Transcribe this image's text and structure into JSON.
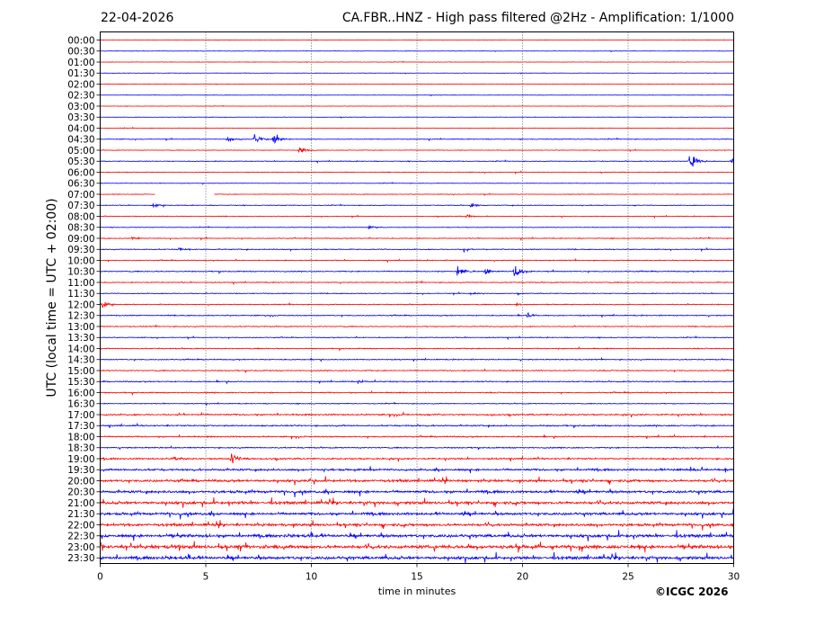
{
  "header": {
    "date": "22-04-2026",
    "title": "CA.FBR..HNZ - High pass filtered @2Hz - Amplification: 1/1000"
  },
  "footer": {
    "copyright": "©ICGC 2026"
  },
  "chart_data": {
    "type": "line",
    "title": "CA.FBR..HNZ - High pass filtered @2Hz - Amplification: 1/1000",
    "xlabel": "time in minutes",
    "ylabel": "UTC (local time = UTC + 02:00)",
    "xlim": [
      0,
      30
    ],
    "x_ticks": [
      "0",
      "5",
      "10",
      "15",
      "20",
      "25",
      "30"
    ],
    "grid": "vertical dotted at 5-minute intervals",
    "colors": {
      "even_hour": "#ff0000",
      "half_hour": "#0000ff"
    },
    "rows": [
      "00:00",
      "00:30",
      "01:00",
      "01:30",
      "02:00",
      "02:30",
      "03:00",
      "03:30",
      "04:00",
      "04:30",
      "05:00",
      "05:30",
      "06:00",
      "06:30",
      "07:00",
      "07:30",
      "08:00",
      "08:30",
      "09:00",
      "09:30",
      "10:00",
      "10:30",
      "11:00",
      "11:30",
      "12:00",
      "12:30",
      "13:00",
      "13:30",
      "14:00",
      "14:30",
      "15:00",
      "15:30",
      "16:00",
      "16:30",
      "17:00",
      "17:30",
      "18:00",
      "18:30",
      "19:00",
      "19:30",
      "20:00",
      "20:30",
      "21:00",
      "21:30",
      "22:00",
      "22:30",
      "23:00",
      "23:30"
    ],
    "noise_level": [
      0.5,
      0.5,
      0.5,
      0.5,
      0.5,
      0.5,
      0.5,
      0.5,
      0.6,
      0.8,
      0.7,
      0.8,
      0.8,
      0.6,
      0.7,
      0.8,
      0.8,
      0.7,
      0.9,
      1.0,
      1.0,
      1.1,
      1.0,
      0.9,
      1.0,
      1.1,
      1.0,
      0.9,
      1.1,
      1.1,
      1.1,
      1.2,
      1.2,
      0.9,
      1.6,
      1.5,
      1.4,
      1.3,
      1.7,
      2.2,
      2.6,
      2.8,
      3.0,
      2.8,
      2.8,
      3.2,
      3.6,
      3.2
    ],
    "events": [
      {
        "row": "04:30",
        "t": 6.0,
        "amp": 3
      },
      {
        "row": "04:30",
        "t": 7.3,
        "amp": 4
      },
      {
        "row": "04:30",
        "t": 8.2,
        "amp": 6
      },
      {
        "row": "05:00",
        "t": 9.4,
        "amp": 3
      },
      {
        "row": "05:30",
        "t": 27.9,
        "amp": 9
      },
      {
        "row": "05:30",
        "t": 29.9,
        "amp": 5
      },
      {
        "row": "07:30",
        "t": 2.5,
        "amp": 2
      },
      {
        "row": "07:30",
        "t": 17.5,
        "amp": 2
      },
      {
        "row": "08:00",
        "t": 17.3,
        "amp": 2
      },
      {
        "row": "08:30",
        "t": 12.7,
        "amp": 2
      },
      {
        "row": "09:00",
        "t": 1.5,
        "amp": 2
      },
      {
        "row": "09:30",
        "t": 3.7,
        "amp": 2
      },
      {
        "row": "09:30",
        "t": 17.2,
        "amp": 2
      },
      {
        "row": "10:30",
        "t": 16.9,
        "amp": 6
      },
      {
        "row": "10:30",
        "t": 19.6,
        "amp": 7
      },
      {
        "row": "10:30",
        "t": 18.2,
        "amp": 3
      },
      {
        "row": "11:30",
        "t": 17.5,
        "amp": 2
      },
      {
        "row": "12:00",
        "t": 0.1,
        "amp": 3
      },
      {
        "row": "12:00",
        "t": 19.7,
        "amp": 2
      },
      {
        "row": "12:30",
        "t": 20.2,
        "amp": 3
      },
      {
        "row": "15:30",
        "t": 12.2,
        "amp": 2
      },
      {
        "row": "19:00",
        "t": 6.2,
        "amp": 6
      },
      {
        "row": "19:00",
        "t": 3.5,
        "amp": 3
      }
    ],
    "gap": {
      "row": "07:00",
      "t_start": 2.6,
      "t_end": 5.4
    }
  }
}
